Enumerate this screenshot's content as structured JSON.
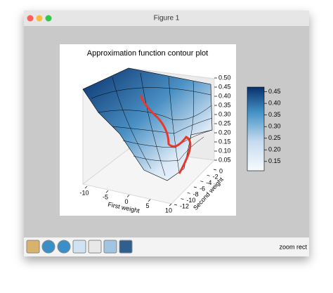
{
  "window": {
    "title": "Figure 1"
  },
  "toolbar": {
    "message": "zoom rect"
  },
  "chart_data": {
    "type": "surface3d",
    "title": "Approximation function contour plot",
    "x_label": "First weight",
    "y_label": "Second weight",
    "xlim": [
      -10,
      10
    ],
    "xticks": [
      -10,
      -5,
      0,
      5,
      10
    ],
    "ylim": [
      -12,
      0
    ],
    "yticks": [
      -12,
      -10,
      -8,
      -6,
      -4,
      -2,
      0
    ],
    "zlim": [
      0.05,
      0.5
    ],
    "zticks": [
      0.05,
      {
        "value": 0.1,
        "label": "0.10"
      },
      0.15,
      {
        "value": 0.2,
        "label": "0.20"
      },
      0.25,
      {
        "value": 0.3,
        "label": "0.30"
      },
      0.35,
      {
        "value": 0.4,
        "label": "0.40"
      },
      0.45,
      {
        "value": 0.5,
        "label": "0.50"
      }
    ],
    "clim": [
      0.11,
      0.47
    ],
    "cticks": [
      0.15,
      {
        "value": 0.2,
        "label": "0.20"
      },
      0.25,
      {
        "value": 0.3,
        "label": "0.30"
      },
      0.35,
      {
        "value": 0.4,
        "label": "0.40"
      },
      0.45
    ]
  }
}
